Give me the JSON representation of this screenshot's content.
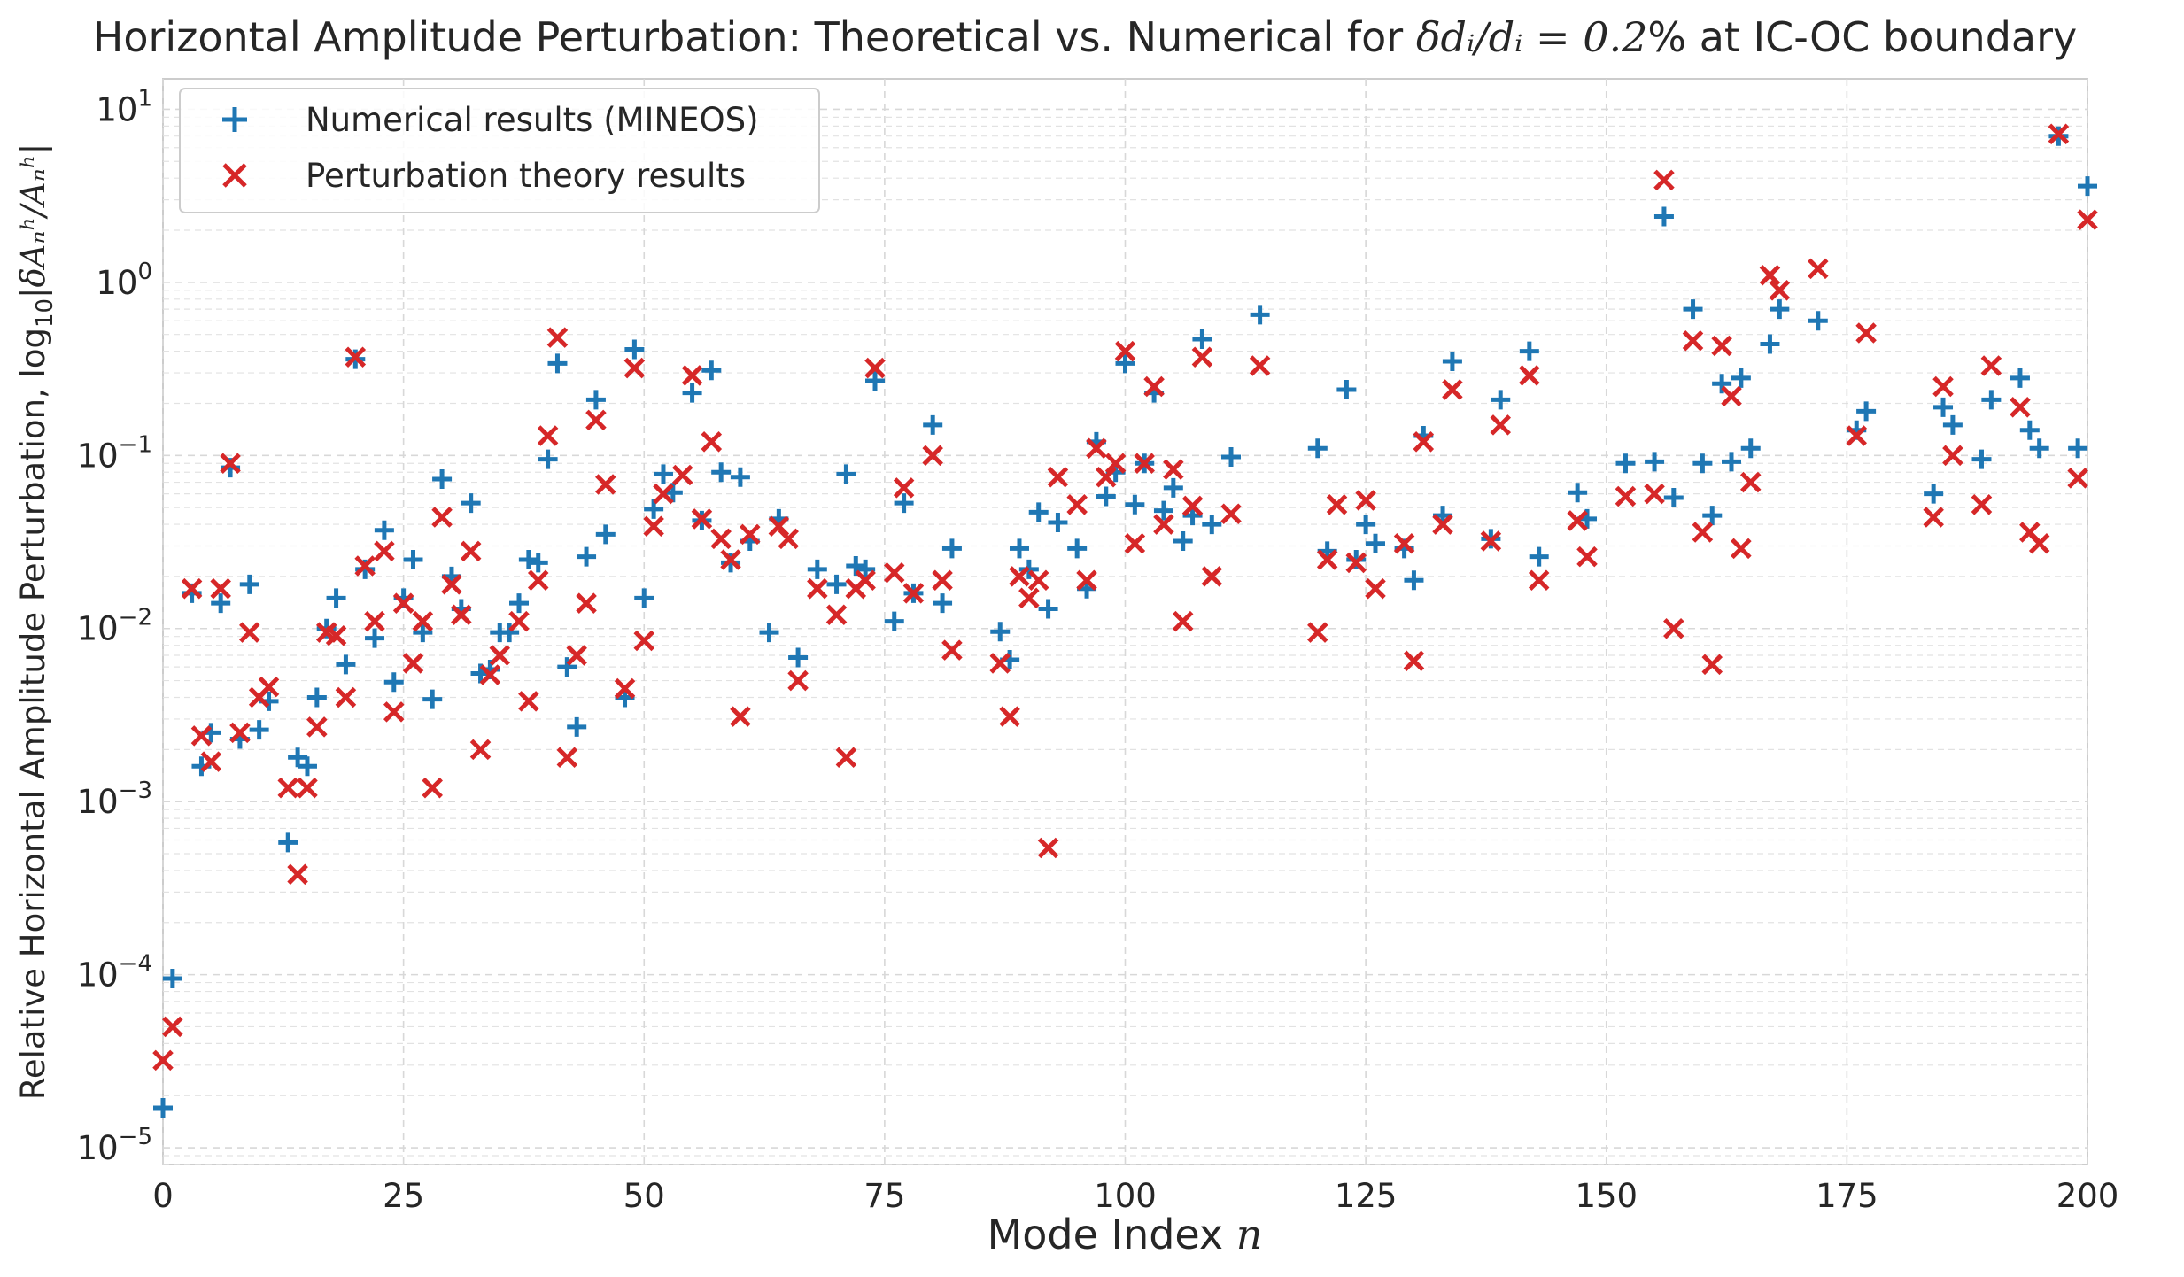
{
  "chart_data": {
    "type": "scatter",
    "title": {
      "prefix": "Horizontal Amplitude Perturbation: Theoretical vs. Numerical for ",
      "math": "δdᵢ/dᵢ = 0.2",
      "suffix": "% at IC-OC boundary"
    },
    "xlabel": {
      "text": "Mode Index ",
      "math": "n"
    },
    "ylabel": {
      "text": "Relative Horizontal Amplitude Perturbation, log",
      "sub": "10",
      "math": "|δAₙʰ/Aₙʰ|"
    },
    "xlim": [
      0,
      200
    ],
    "ylim": [
      8e-06,
      15
    ],
    "yscale": "log",
    "grid": true,
    "legend": "upper-left",
    "x_ticks": [
      "0",
      "25",
      "50",
      "75",
      "100",
      "125",
      "150",
      "175",
      "200"
    ],
    "y_ticks": [
      {
        "base": "10",
        "exp": "−5"
      },
      {
        "base": "10",
        "exp": "−4"
      },
      {
        "base": "10",
        "exp": "−3"
      },
      {
        "base": "10",
        "exp": "−2"
      },
      {
        "base": "10",
        "exp": "−1"
      },
      {
        "base": "10",
        "exp": "0"
      },
      {
        "base": "10",
        "exp": "1"
      }
    ],
    "series": [
      {
        "name": "Numerical results (MINEOS)",
        "marker": "plus",
        "color": "#1f77b4",
        "points": [
          [
            0,
            1.7e-05
          ],
          [
            1,
            9.5e-05
          ],
          [
            3,
            0.016
          ],
          [
            4,
            0.0016
          ],
          [
            5,
            0.0025
          ],
          [
            6,
            0.014
          ],
          [
            7,
            0.085
          ],
          [
            8,
            0.0023
          ],
          [
            9,
            0.018
          ],
          [
            10,
            0.0026
          ],
          [
            11,
            0.0038
          ],
          [
            13,
            0.00058
          ],
          [
            14,
            0.0018
          ],
          [
            15,
            0.0016
          ],
          [
            16,
            0.004
          ],
          [
            17,
            0.01
          ],
          [
            18,
            0.015
          ],
          [
            19,
            0.0062
          ],
          [
            20,
            0.36
          ],
          [
            21,
            0.022
          ],
          [
            22,
            0.0088
          ],
          [
            23,
            0.037
          ],
          [
            24,
            0.0049
          ],
          [
            25,
            0.015
          ],
          [
            26,
            0.025
          ],
          [
            27,
            0.0095
          ],
          [
            28,
            0.0039
          ],
          [
            29,
            0.073
          ],
          [
            30,
            0.02
          ],
          [
            31,
            0.013
          ],
          [
            32,
            0.053
          ],
          [
            33,
            0.0055
          ],
          [
            34,
            0.0058
          ],
          [
            35,
            0.0095
          ],
          [
            36,
            0.0095
          ],
          [
            37,
            0.014
          ],
          [
            38,
            0.025
          ],
          [
            39,
            0.024
          ],
          [
            40,
            0.095
          ],
          [
            41,
            0.34
          ],
          [
            42,
            0.006
          ],
          [
            43,
            0.0027
          ],
          [
            44,
            0.026
          ],
          [
            45,
            0.21
          ],
          [
            46,
            0.035
          ],
          [
            48,
            0.004
          ],
          [
            49,
            0.41
          ],
          [
            50,
            0.015
          ],
          [
            51,
            0.049
          ],
          [
            52,
            0.078
          ],
          [
            53,
            0.061
          ],
          [
            55,
            0.23
          ],
          [
            56,
            0.042
          ],
          [
            57,
            0.31
          ],
          [
            58,
            0.08
          ],
          [
            59,
            0.024
          ],
          [
            60,
            0.075
          ],
          [
            61,
            0.032
          ],
          [
            63,
            0.0095
          ],
          [
            64,
            0.043
          ],
          [
            66,
            0.0068
          ],
          [
            68,
            0.022
          ],
          [
            70,
            0.018
          ],
          [
            71,
            0.078
          ],
          [
            72,
            0.023
          ],
          [
            73,
            0.022
          ],
          [
            74,
            0.27
          ],
          [
            76,
            0.011
          ],
          [
            77,
            0.053
          ],
          [
            78,
            0.016
          ],
          [
            80,
            0.15
          ],
          [
            81,
            0.014
          ],
          [
            82,
            0.029
          ],
          [
            87,
            0.0096
          ],
          [
            88,
            0.0066
          ],
          [
            89,
            0.029
          ],
          [
            90,
            0.022
          ],
          [
            91,
            0.047
          ],
          [
            92,
            0.013
          ],
          [
            93,
            0.041
          ],
          [
            95,
            0.029
          ],
          [
            96,
            0.017
          ],
          [
            97,
            0.12
          ],
          [
            98,
            0.058
          ],
          [
            99,
            0.08
          ],
          [
            100,
            0.34
          ],
          [
            101,
            0.052
          ],
          [
            102,
            0.09
          ],
          [
            103,
            0.23
          ],
          [
            104,
            0.048
          ],
          [
            105,
            0.065
          ],
          [
            106,
            0.032
          ],
          [
            107,
            0.045
          ],
          [
            108,
            0.47
          ],
          [
            109,
            0.04
          ],
          [
            111,
            0.098
          ],
          [
            114,
            0.65
          ],
          [
            120,
            0.11
          ],
          [
            121,
            0.028
          ],
          [
            123,
            0.24
          ],
          [
            124,
            0.025
          ],
          [
            125,
            0.04
          ],
          [
            126,
            0.031
          ],
          [
            129,
            0.029
          ],
          [
            130,
            0.019
          ],
          [
            131,
            0.13
          ],
          [
            133,
            0.045
          ],
          [
            134,
            0.35
          ],
          [
            138,
            0.033
          ],
          [
            139,
            0.21
          ],
          [
            142,
            0.4
          ],
          [
            143,
            0.026
          ],
          [
            147,
            0.061
          ],
          [
            148,
            0.043
          ],
          [
            152,
            0.09
          ],
          [
            155,
            0.092
          ],
          [
            156,
            2.4
          ],
          [
            157,
            0.057
          ],
          [
            159,
            0.7
          ],
          [
            160,
            0.09
          ],
          [
            161,
            0.045
          ],
          [
            162,
            0.26
          ],
          [
            163,
            0.092
          ],
          [
            164,
            0.28
          ],
          [
            165,
            0.11
          ],
          [
            167,
            0.44
          ],
          [
            168,
            0.7
          ],
          [
            172,
            0.6
          ],
          [
            176,
            0.14
          ],
          [
            177,
            0.18
          ],
          [
            184,
            0.06
          ],
          [
            185,
            0.19
          ],
          [
            186,
            0.15
          ],
          [
            189,
            0.095
          ],
          [
            190,
            0.21
          ],
          [
            193,
            0.28
          ],
          [
            194,
            0.14
          ],
          [
            195,
            0.11
          ],
          [
            197,
            7.0
          ],
          [
            199,
            0.11
          ],
          [
            200,
            3.6
          ]
        ]
      },
      {
        "name": "Perturbation theory results",
        "marker": "x",
        "color": "#d62728",
        "points": [
          [
            0,
            3.2e-05
          ],
          [
            1,
            5e-05
          ],
          [
            3,
            0.017
          ],
          [
            4,
            0.0024
          ],
          [
            5,
            0.0017
          ],
          [
            6,
            0.017
          ],
          [
            7,
            0.09
          ],
          [
            8,
            0.0025
          ],
          [
            9,
            0.0095
          ],
          [
            10,
            0.004
          ],
          [
            11,
            0.0046
          ],
          [
            13,
            0.0012
          ],
          [
            14,
            0.00038
          ],
          [
            15,
            0.0012
          ],
          [
            16,
            0.0027
          ],
          [
            17,
            0.0095
          ],
          [
            18,
            0.0091
          ],
          [
            19,
            0.004
          ],
          [
            20,
            0.37
          ],
          [
            21,
            0.023
          ],
          [
            22,
            0.011
          ],
          [
            23,
            0.028
          ],
          [
            24,
            0.0033
          ],
          [
            25,
            0.014
          ],
          [
            26,
            0.0063
          ],
          [
            27,
            0.011
          ],
          [
            28,
            0.0012
          ],
          [
            29,
            0.044
          ],
          [
            30,
            0.018
          ],
          [
            31,
            0.012
          ],
          [
            32,
            0.028
          ],
          [
            33,
            0.002
          ],
          [
            34,
            0.0054
          ],
          [
            35,
            0.007
          ],
          [
            37,
            0.011
          ],
          [
            38,
            0.0038
          ],
          [
            39,
            0.019
          ],
          [
            40,
            0.13
          ],
          [
            41,
            0.48
          ],
          [
            42,
            0.0018
          ],
          [
            43,
            0.007
          ],
          [
            44,
            0.014
          ],
          [
            45,
            0.16
          ],
          [
            46,
            0.068
          ],
          [
            48,
            0.0045
          ],
          [
            49,
            0.32
          ],
          [
            50,
            0.0085
          ],
          [
            51,
            0.039
          ],
          [
            52,
            0.06
          ],
          [
            54,
            0.077
          ],
          [
            55,
            0.29
          ],
          [
            56,
            0.043
          ],
          [
            57,
            0.12
          ],
          [
            58,
            0.033
          ],
          [
            59,
            0.025
          ],
          [
            60,
            0.0031
          ],
          [
            61,
            0.035
          ],
          [
            64,
            0.039
          ],
          [
            65,
            0.033
          ],
          [
            66,
            0.005
          ],
          [
            68,
            0.017
          ],
          [
            70,
            0.012
          ],
          [
            71,
            0.0018
          ],
          [
            72,
            0.017
          ],
          [
            73,
            0.019
          ],
          [
            74,
            0.32
          ],
          [
            76,
            0.021
          ],
          [
            77,
            0.065
          ],
          [
            78,
            0.016
          ],
          [
            80,
            0.1
          ],
          [
            81,
            0.019
          ],
          [
            82,
            0.0075
          ],
          [
            87,
            0.0063
          ],
          [
            88,
            0.0031
          ],
          [
            89,
            0.02
          ],
          [
            90,
            0.015
          ],
          [
            91,
            0.019
          ],
          [
            92,
            0.00054
          ],
          [
            93,
            0.075
          ],
          [
            95,
            0.052
          ],
          [
            96,
            0.019
          ],
          [
            97,
            0.11
          ],
          [
            98,
            0.075
          ],
          [
            99,
            0.09
          ],
          [
            100,
            0.4
          ],
          [
            101,
            0.031
          ],
          [
            102,
            0.09
          ],
          [
            103,
            0.25
          ],
          [
            104,
            0.04
          ],
          [
            105,
            0.083
          ],
          [
            106,
            0.011
          ],
          [
            107,
            0.051
          ],
          [
            108,
            0.37
          ],
          [
            109,
            0.02
          ],
          [
            111,
            0.046
          ],
          [
            114,
            0.33
          ],
          [
            120,
            0.0095
          ],
          [
            121,
            0.025
          ],
          [
            122,
            0.052
          ],
          [
            124,
            0.024
          ],
          [
            125,
            0.055
          ],
          [
            126,
            0.017
          ],
          [
            129,
            0.031
          ],
          [
            130,
            0.0065
          ],
          [
            131,
            0.12
          ],
          [
            133,
            0.04
          ],
          [
            134,
            0.24
          ],
          [
            138,
            0.032
          ],
          [
            139,
            0.15
          ],
          [
            142,
            0.29
          ],
          [
            143,
            0.019
          ],
          [
            147,
            0.042
          ],
          [
            148,
            0.026
          ],
          [
            152,
            0.058
          ],
          [
            155,
            0.06
          ],
          [
            156,
            3.9
          ],
          [
            157,
            0.01
          ],
          [
            159,
            0.46
          ],
          [
            160,
            0.036
          ],
          [
            161,
            0.0062
          ],
          [
            162,
            0.43
          ],
          [
            163,
            0.22
          ],
          [
            164,
            0.029
          ],
          [
            165,
            0.07
          ],
          [
            167,
            1.1
          ],
          [
            168,
            0.9
          ],
          [
            172,
            1.2
          ],
          [
            176,
            0.13
          ],
          [
            177,
            0.51
          ],
          [
            184,
            0.044
          ],
          [
            185,
            0.25
          ],
          [
            186,
            0.1
          ],
          [
            189,
            0.052
          ],
          [
            190,
            0.33
          ],
          [
            193,
            0.19
          ],
          [
            194,
            0.036
          ],
          [
            195,
            0.031
          ],
          [
            197,
            7.2
          ],
          [
            199,
            0.074
          ],
          [
            200,
            2.3
          ]
        ]
      }
    ]
  }
}
